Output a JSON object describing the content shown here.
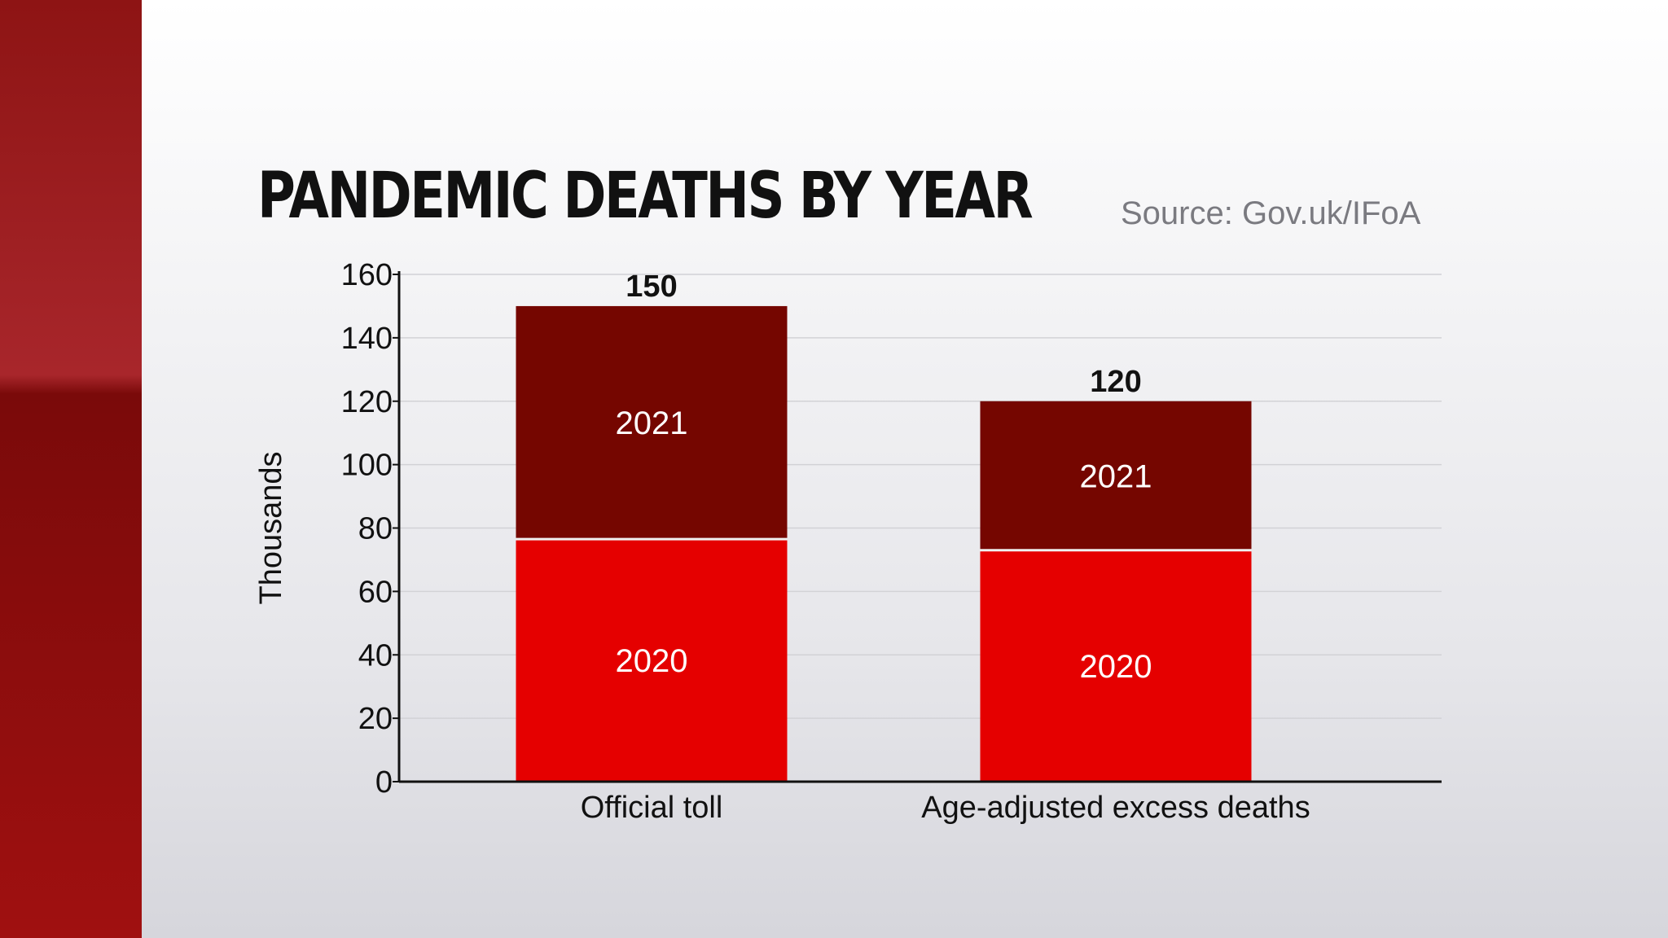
{
  "title": "PANDEMIC DEATHS BY YEAR",
  "source": "Source: Gov.uk/IFoA",
  "chart_data": {
    "type": "bar",
    "stacked": true,
    "title": "PANDEMIC DEATHS BY YEAR",
    "ylabel": "Thousands",
    "xlabel": "",
    "ylim": [
      0,
      160
    ],
    "yticks": [
      "0",
      "20",
      "40",
      "60",
      "80",
      "100",
      "120",
      "140",
      "160"
    ],
    "grid": true,
    "categories": [
      "Official toll",
      "Age-adjusted excess deaths"
    ],
    "series": [
      {
        "name": "2020",
        "values": [
          76.5,
          73
        ],
        "color": "#e50000"
      },
      {
        "name": "2021",
        "values": [
          73.5,
          47
        ],
        "color": "#750600"
      }
    ],
    "totals": [
      "150",
      "120"
    ]
  }
}
